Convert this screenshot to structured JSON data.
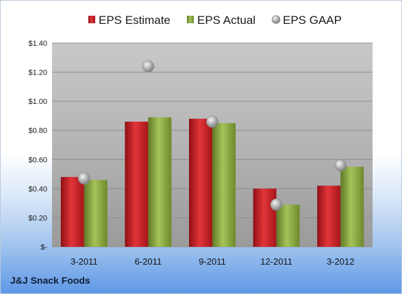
{
  "chart_data": {
    "type": "bar",
    "categories": [
      "3-2011",
      "6-2011",
      "9-2011",
      "12-2011",
      "3-2012"
    ],
    "series": [
      {
        "name": "EPS Estimate",
        "kind": "bar",
        "color": "#c41e24",
        "values": [
          0.48,
          0.86,
          0.88,
          0.4,
          0.42
        ]
      },
      {
        "name": "EPS Actual",
        "kind": "bar",
        "color": "#8aa73e",
        "values": [
          0.46,
          0.89,
          0.85,
          0.29,
          0.55
        ]
      },
      {
        "name": "EPS GAAP",
        "kind": "marker",
        "color": "#9a9a9a",
        "values": [
          0.47,
          1.24,
          0.86,
          0.29,
          0.56
        ]
      }
    ],
    "ylim": [
      0,
      1.4
    ],
    "yticks": [
      0,
      0.2,
      0.4,
      0.6,
      0.8,
      1.0,
      1.2,
      1.4
    ],
    "ytick_labels": [
      "$-",
      "$0.20",
      "$0.40",
      "$0.60",
      "$0.80",
      "$1.00",
      "$1.20",
      "$1.40"
    ],
    "grid": true,
    "legend_position": "top"
  },
  "company_label": "J&J Snack Foods"
}
